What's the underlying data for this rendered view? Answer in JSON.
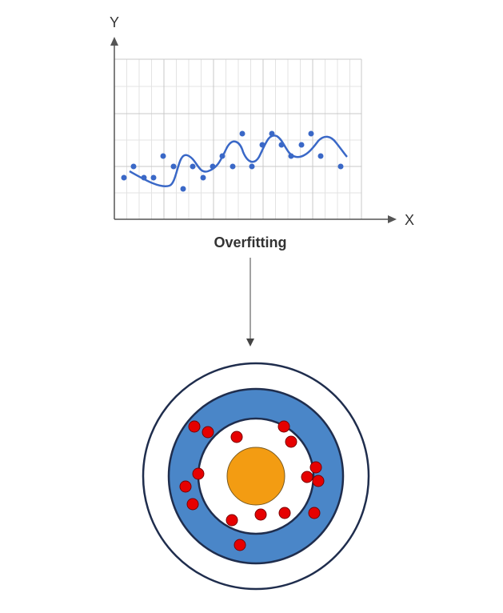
{
  "chart": {
    "y_label": "Y",
    "x_label": "X",
    "caption": "Overfitting"
  }
}
